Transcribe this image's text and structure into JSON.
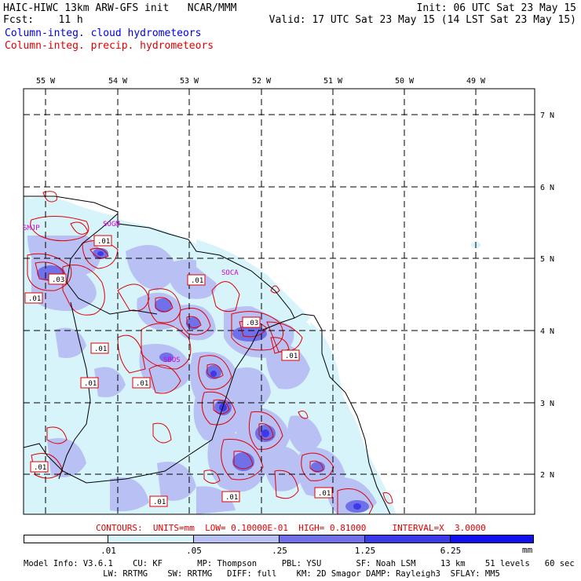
{
  "header": {
    "title": "HAIC-HIWC 13km ARW-GFS init   NCAR/MMM",
    "init": "Init: 06 UTC Sat 23 May 15",
    "fcst": "Fcst:    11 h",
    "valid": "Valid: 17 UTC Sat 23 May 15 (14 LST Sat 23 May 15)",
    "legend_cloud": "Column-integ. cloud hydrometeors",
    "legend_precip": "Column-integ. precip. hydrometeors"
  },
  "colors": {
    "cloud_line": "#0000e0",
    "precip_line": "#e00000",
    "fill_1": "#d6f4fa",
    "fill_2": "#b8c0f4",
    "fill_3": "#9090ec",
    "fill_4": "#6060e4",
    "fill_5": "#3030e8",
    "fill_6": "#0000ee",
    "station": "#d000d0"
  },
  "map": {
    "lon_labels": [
      "55 W",
      "54 W",
      "53 W",
      "52 W",
      "51 W",
      "50 W",
      "49 W"
    ],
    "lat_labels": [
      "7 N",
      "6 N",
      "5 N",
      "4 N",
      "3 N",
      "2 N"
    ],
    "stations": [
      "SMJP",
      "SOGM",
      "SOCA",
      "SBOS"
    ],
    "contour_labels": [
      ".01",
      ".01",
      ".03",
      ".01",
      ".01",
      ".01",
      ".01",
      ".03",
      ".01",
      ".01",
      ".01",
      ".01",
      ".01"
    ]
  },
  "contour_info": "CONTOURS:  UNITS=mm  LOW= 0.10000E-01  HIGH= 0.81000     INTERVAL=X  3.0000",
  "colorbar": {
    "labels": [
      ".01",
      ".05",
      ".25",
      "1.25",
      "6.25"
    ],
    "unit": "mm"
  },
  "model_info": {
    "line1": "Model Info: V3.6.1    CU: KF       MP: Thompson     PBL: YSU       SF: Noah LSM     13 km    51 levels   60 sec",
    "line2": "                LW: RRTMG    SW: RRTMG   DIFF: full    KM: 2D Smagor DAMP: Rayleigh3  SFLAY: MM5"
  }
}
